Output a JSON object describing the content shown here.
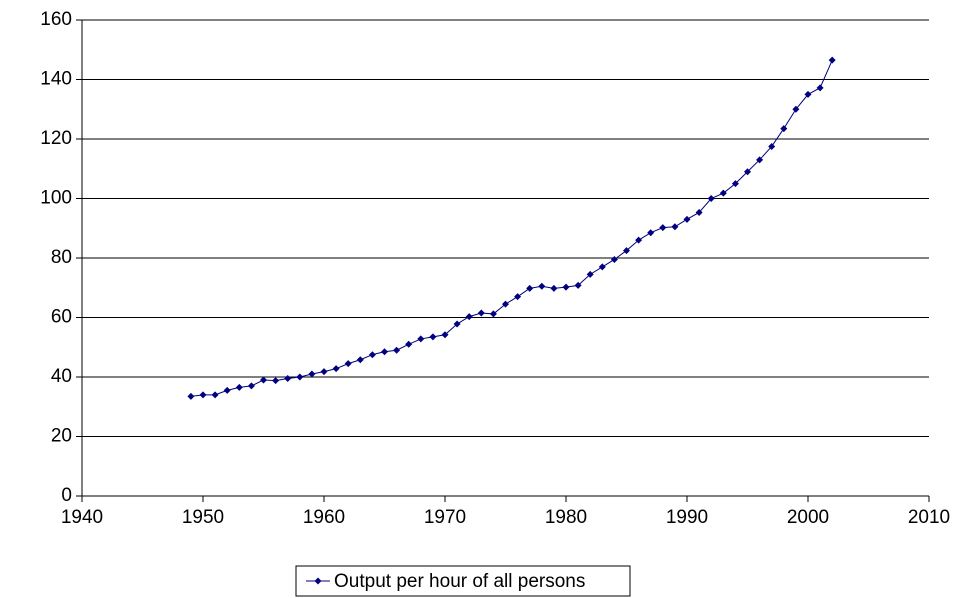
{
  "chart_data": {
    "type": "line",
    "x": [
      1949,
      1950,
      1951,
      1952,
      1953,
      1954,
      1955,
      1956,
      1957,
      1958,
      1959,
      1960,
      1961,
      1962,
      1963,
      1964,
      1965,
      1966,
      1967,
      1968,
      1969,
      1970,
      1971,
      1972,
      1973,
      1974,
      1975,
      1976,
      1977,
      1978,
      1979,
      1980,
      1981,
      1982,
      1983,
      1984,
      1985,
      1986,
      1987,
      1988,
      1989,
      1990,
      1991,
      1992,
      1993,
      1994,
      1995,
      1996,
      1997,
      1998,
      1999,
      2000,
      2001,
      2002
    ],
    "series": [
      {
        "name": "Output per hour of all persons",
        "color": "#000080",
        "values": [
          33.5,
          34,
          34,
          35.5,
          36.5,
          37,
          39,
          38.8,
          39.5,
          40,
          41,
          41.8,
          42.8,
          44.5,
          45.8,
          47.5,
          48.5,
          49,
          51,
          52.8,
          53.5,
          54.2,
          57.8,
          60.3,
          61.5,
          61.2,
          64.5,
          67,
          69.8,
          70.5,
          69.8,
          70.2,
          70.8,
          74.5,
          77,
          79.5,
          82.5,
          86,
          88.5,
          90.2,
          90.5,
          93,
          95.3,
          100,
          101.8,
          105,
          109,
          113,
          117.5,
          123.5,
          130,
          135,
          137.2,
          146.5
        ]
      }
    ],
    "xlim": [
      1940,
      2010
    ],
    "xticks": [
      1940,
      1950,
      1960,
      1970,
      1980,
      1990,
      2000,
      2010
    ],
    "ylim": [
      0,
      160
    ],
    "yticks": [
      0,
      20,
      40,
      60,
      80,
      100,
      120,
      140,
      160
    ],
    "grid": true,
    "legend": "bottom"
  }
}
